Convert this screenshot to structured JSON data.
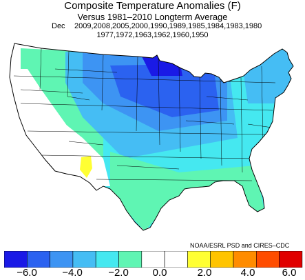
{
  "header": {
    "title": "Composite Temperature Anomalies (F)",
    "subtitle": "Versus 1981–2010 Longterm Average",
    "month": "Dec",
    "years_line1": "2009,2008,2005,2000,1990,1989,1985,1984,1983,1980",
    "years_line2": "1977,1972,1963,1962,1960,1950"
  },
  "credit": "NOAA/ESRL PSD and CIRES–CDC",
  "colorbar": {
    "colors": [
      "#1a1ae6",
      "#2b62f0",
      "#3d94f3",
      "#45bdf4",
      "#45e8f0",
      "#5ff5b3",
      "#ffffff",
      "#ffffff",
      "#ffff33",
      "#ffc400",
      "#ff8c00",
      "#ff4d00",
      "#e00000"
    ],
    "tick_labels": [
      "−6.0",
      "−4.0",
      "−2.0",
      "0.0",
      "2.0",
      "4.0",
      "6.0"
    ]
  }
}
